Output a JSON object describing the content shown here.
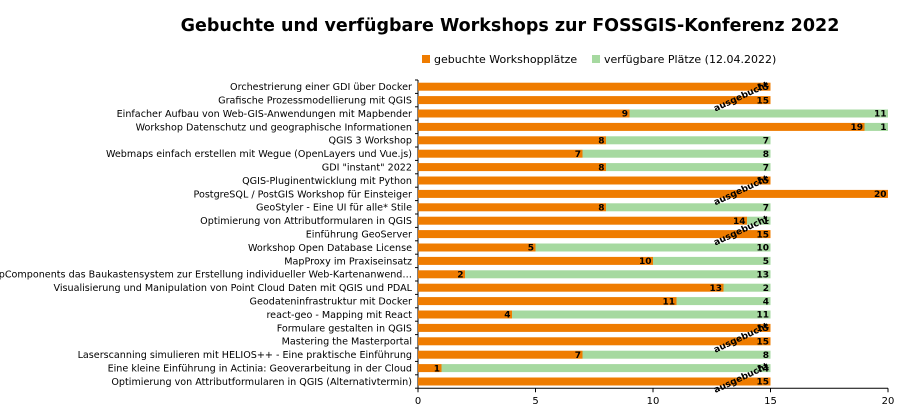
{
  "chart_data": {
    "type": "bar",
    "orientation": "horizontal",
    "stacked": true,
    "title": "Gebuchte und verfügbare Workshops zur FOSSGIS-Konferenz 2022",
    "xlim": [
      0,
      20
    ],
    "xticks": [
      "0",
      "5",
      "10",
      "15",
      "20"
    ],
    "legend_position": "top",
    "categories": [
      "Orchestrierung einer GDI über Docker",
      "Grafische Prozessmodellierung mit QGIS",
      "Einfacher Aufbau von Web-GIS-Anwendungen mit Mapbender",
      "Workshop Datenschutz und geographische Informationen",
      "QGIS 3 Workshop",
      "Webmaps einfach erstellen mit Wegue (OpenLayers und Vue.js)",
      "GDI \"instant\" 2022",
      "QGIS-Pluginentwicklung mit Python",
      "PostgreSQL / PostGIS Workshop für Einsteiger",
      "GeoStyler - Eine UI für alle* Stile",
      "Optimierung von Attributformularen in QGIS",
      "Einführung GeoServer",
      "Workshop Open Database License",
      "MapProxy im Praxiseinsatz",
      "MapComponents das Baukastensystem zur Erstellung individueller Web-Kartenanwend…",
      "Visualisierung und Manipulation von Point Cloud Daten mit QGIS und PDAL",
      "Geodateninfrastruktur mit Docker",
      "react-geo - Mapping mit React",
      "Formulare gestalten in QGIS",
      "Mastering the Masterportal",
      "Laserscanning simulieren mit HELIOS++ - Eine praktische Einführung",
      "Eine kleine Einführung in Actinia: Geoverarbeitung in der Cloud",
      "Optimierung von Attributformularen in QGIS (Alternativtermin)"
    ],
    "series": [
      {
        "name": "gebuchte Workshopplätze",
        "color": "#ef7c00",
        "values": [
          15,
          15,
          9,
          19,
          8,
          7,
          8,
          15,
          20,
          8,
          14,
          15,
          5,
          10,
          2,
          13,
          11,
          4,
          15,
          15,
          7,
          1,
          15
        ],
        "labels": [
          "15",
          "15",
          "9",
          "19",
          "8",
          "7",
          "8",
          "15",
          "20",
          "8",
          "14",
          "15",
          "5",
          "10",
          "2",
          "13",
          "11",
          "4",
          "15",
          "15",
          "7",
          "1",
          "15"
        ]
      },
      {
        "name": "verfügbare Plätze (12.04.2022)",
        "color": "#a6d9a0",
        "values": [
          0,
          0,
          11,
          1,
          7,
          8,
          7,
          0,
          0,
          7,
          1,
          0,
          10,
          5,
          13,
          2,
          4,
          11,
          0,
          0,
          8,
          14,
          0
        ],
        "labels": [
          "",
          "",
          "11",
          "1",
          "7",
          "8",
          "7",
          "",
          "",
          "7",
          "1",
          "",
          "10",
          "5",
          "13",
          "2",
          "4",
          "11",
          "",
          "",
          "8",
          "14",
          ""
        ]
      }
    ],
    "annotations": [
      {
        "text": "ausgebucht",
        "row": 1
      },
      {
        "text": "ausgebucht",
        "row": 8
      },
      {
        "text": "ausgebucht",
        "row": 11
      },
      {
        "text": "ausgebucht",
        "row": 19
      },
      {
        "text": "ausgebucht",
        "row": 22
      }
    ]
  }
}
